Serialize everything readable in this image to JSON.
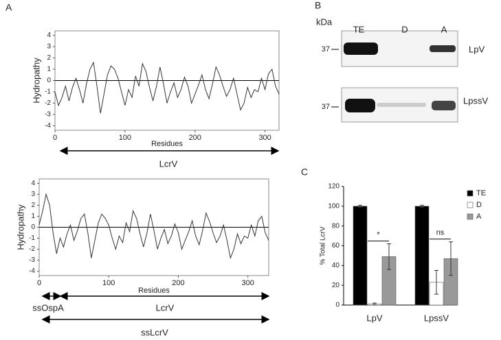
{
  "panels": {
    "a": "A",
    "b": "B",
    "c": "C"
  },
  "blot": {
    "unit": "kDa",
    "lanes": [
      "TE",
      "D",
      "A"
    ],
    "rows": [
      {
        "marker": "37",
        "label": "LpV"
      },
      {
        "marker": "37",
        "label": "LpssV"
      }
    ]
  },
  "chart_data": [
    {
      "type": "line",
      "ylabel": "Hydropathy",
      "xlabel": "Residues",
      "annotations": [
        "LcrV"
      ],
      "xlim": [
        0,
        320
      ],
      "ylim": [
        -4.4,
        4.4
      ],
      "xticks": [
        0,
        100,
        200,
        300
      ],
      "yticks": [
        -4,
        -3,
        -2,
        -1,
        0,
        1,
        2,
        3,
        4
      ],
      "x": [
        0,
        5,
        10,
        15,
        20,
        25,
        30,
        35,
        40,
        45,
        50,
        55,
        60,
        65,
        70,
        75,
        80,
        85,
        90,
        95,
        100,
        105,
        110,
        115,
        120,
        125,
        130,
        135,
        140,
        145,
        150,
        155,
        160,
        165,
        170,
        175,
        180,
        185,
        190,
        195,
        200,
        205,
        210,
        215,
        220,
        225,
        230,
        235,
        240,
        245,
        250,
        255,
        260,
        265,
        270,
        275,
        280,
        285,
        290,
        295,
        300,
        305,
        310,
        315,
        320
      ],
      "series": [
        {
          "color": "#333333",
          "values": [
            -1.0,
            -2.2,
            -1.5,
            -0.5,
            -1.8,
            -0.6,
            0.2,
            -0.8,
            -2.0,
            -0.3,
            1.0,
            1.6,
            -0.5,
            -2.9,
            -1.2,
            0.5,
            1.3,
            1.0,
            0.2,
            -1.0,
            -2.2,
            -0.8,
            -1.5,
            0.4,
            -0.5,
            1.5,
            0.8,
            -0.6,
            -1.8,
            -0.5,
            1.2,
            -0.3,
            -2.0,
            -1.0,
            -0.2,
            -1.5,
            -0.8,
            0.3,
            -0.5,
            -2.0,
            -1.2,
            -0.4,
            0.5,
            -0.8,
            -1.6,
            -0.3,
            1.2,
            0.5,
            -0.5,
            -1.4,
            -0.8,
            0.2,
            -1.2,
            -2.6,
            -2.0,
            -0.6,
            -1.5,
            -0.8,
            -1.0,
            0.2,
            -0.8,
            0.6,
            1.0,
            -0.5,
            -1.2
          ]
        }
      ]
    },
    {
      "type": "line",
      "ylabel": "Hydropathy",
      "xlabel": "Residues",
      "annotations": [
        "ssOspA",
        "LcrV",
        "ssLcrV"
      ],
      "xlim": [
        0,
        330
      ],
      "ylim": [
        -4.4,
        4.4
      ],
      "xticks": [
        0,
        100,
        200,
        300
      ],
      "yticks": [
        -4,
        -3,
        -2,
        -1,
        0,
        1,
        2,
        3,
        4
      ],
      "x": [
        0,
        5,
        10,
        15,
        20,
        25,
        30,
        35,
        40,
        45,
        50,
        55,
        60,
        65,
        70,
        75,
        80,
        85,
        90,
        95,
        100,
        105,
        110,
        115,
        120,
        125,
        130,
        135,
        140,
        145,
        150,
        155,
        160,
        165,
        170,
        175,
        180,
        185,
        190,
        195,
        200,
        205,
        210,
        215,
        220,
        225,
        230,
        235,
        240,
        245,
        250,
        255,
        260,
        265,
        270,
        275,
        280,
        285,
        290,
        295,
        300,
        305,
        310,
        315,
        320,
        325,
        330
      ],
      "series": [
        {
          "color": "#333333",
          "values": [
            0.2,
            1.5,
            3.0,
            2.0,
            -0.5,
            -2.4,
            -1.0,
            -1.8,
            -0.6,
            0.2,
            -1.2,
            -0.3,
            0.8,
            1.2,
            -0.5,
            -2.8,
            -1.2,
            0.4,
            1.2,
            0.8,
            0.2,
            -1.0,
            -2.0,
            -0.8,
            -1.4,
            0.4,
            -0.4,
            1.5,
            0.8,
            -0.6,
            -1.8,
            -0.5,
            1.2,
            -0.3,
            -2.0,
            -1.0,
            -0.2,
            -1.5,
            -0.8,
            0.3,
            -0.5,
            -2.0,
            -1.2,
            -0.4,
            0.6,
            -0.8,
            -1.6,
            -0.3,
            1.3,
            0.5,
            -0.5,
            -1.4,
            -0.8,
            0.2,
            -1.2,
            -2.8,
            -2.0,
            -0.6,
            -1.5,
            -0.8,
            -1.0,
            0.2,
            -0.8,
            0.6,
            1.0,
            -0.5,
            -1.2
          ]
        }
      ]
    },
    {
      "type": "bar",
      "ylabel": "% Total LcrV",
      "categories": [
        "LpV",
        "LpssV"
      ],
      "ylim": [
        0,
        120
      ],
      "yticks": [
        0,
        20,
        40,
        60,
        80,
        100,
        120
      ],
      "series": [
        {
          "name": "TE",
          "color": "#000000",
          "values": [
            100,
            100
          ],
          "errors": [
            1,
            1
          ]
        },
        {
          "name": "D",
          "color": "#ffffff",
          "values": [
            1,
            23
          ],
          "errors": [
            1,
            12
          ]
        },
        {
          "name": "A",
          "color": "#999999",
          "values": [
            49,
            47
          ],
          "errors": [
            13,
            17
          ]
        }
      ],
      "annotations": [
        "*",
        "ns"
      ],
      "legend": "right"
    }
  ]
}
